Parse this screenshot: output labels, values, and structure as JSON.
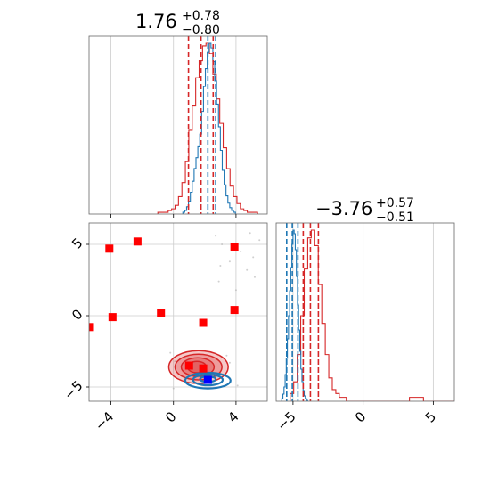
{
  "chart_data": {
    "type": "scatter",
    "subtype": "corner-plot",
    "colors": {
      "red": "#d62728",
      "blue": "#1f77b4",
      "marker_red": "#ff0000",
      "marker_blue": "#0000ff",
      "grid": "#cccccc"
    },
    "param1": {
      "title_main": "1.76",
      "title_sup": "+0.78",
      "title_sub": "−0.80",
      "xlim": [
        -5.4,
        6.0
      ],
      "xticks": [
        {
          "value": -4,
          "label": "−4"
        },
        {
          "value": 0,
          "label": "0"
        },
        {
          "value": 4,
          "label": "4"
        }
      ],
      "red_hist": {
        "bin_start": -1.0,
        "bin_width": 0.22,
        "counts": [
          1,
          1,
          1,
          2,
          3,
          5,
          10,
          18,
          30,
          48,
          62,
          78,
          88,
          96,
          98,
          92,
          80,
          66,
          52,
          38,
          26,
          16,
          10,
          6,
          3,
          2,
          1,
          1,
          1
        ]
      },
      "blue_hist": {
        "bin_start": 0.6,
        "bin_width": 0.12,
        "counts": [
          2,
          4,
          8,
          14,
          24,
          36,
          50,
          62,
          74,
          88,
          112,
          140,
          160,
          178,
          188,
          182,
          168,
          146,
          120,
          96,
          70,
          48,
          32,
          20,
          12,
          7,
          4,
          2
        ]
      },
      "red_quantiles": [
        0.96,
        1.76,
        2.54
      ],
      "blue_quantiles": [
        1.75,
        2.2,
        2.7
      ]
    },
    "param2": {
      "title_main": "−3.76",
      "title_sup": "+0.57",
      "title_sub": "−0.51",
      "xlim": [
        -6.2,
        6.5
      ],
      "xticks": [
        {
          "value": -5,
          "label": "−5"
        },
        {
          "value": 0,
          "label": "0"
        },
        {
          "value": 5,
          "label": "5"
        }
      ],
      "red_hist": {
        "bin_start": -5.2,
        "bin_width": 0.25,
        "counts": [
          2,
          5,
          12,
          22,
          34,
          42,
          44,
          40,
          30,
          20,
          12,
          6,
          3,
          2,
          1,
          1,
          0,
          0,
          0,
          0,
          0,
          0,
          0,
          0,
          0,
          0,
          0,
          0,
          0,
          0,
          0,
          0,
          0,
          0,
          1,
          1,
          1,
          1,
          0,
          0,
          0,
          0,
          0,
          0,
          0,
          0,
          0,
          0,
          0,
          0,
          0,
          0,
          0,
          0,
          0,
          0,
          0,
          0,
          0,
          0,
          1,
          1,
          1,
          1,
          0,
          0,
          0,
          0
        ]
      },
      "blue_hist": {
        "bin_start": -5.8,
        "bin_width": 0.08,
        "counts": [
          3,
          8,
          16,
          30,
          48,
          70,
          96,
          124,
          150,
          176,
          192,
          188,
          170,
          140,
          108,
          80,
          56,
          36,
          22,
          12,
          6,
          3,
          1
        ]
      },
      "red_quantiles": [
        -4.27,
        -3.76,
        -3.19
      ],
      "blue_quantiles": [
        -5.45,
        -5.05,
        -4.65
      ]
    },
    "joint": {
      "xlim": [
        -5.4,
        6.0
      ],
      "ylim": [
        -6.0,
        6.5
      ],
      "yticks": [
        {
          "value": -5,
          "label": "−5"
        },
        {
          "value": 0,
          "label": "0"
        },
        {
          "value": 5,
          "label": "5"
        }
      ],
      "red_contours": [
        {
          "cx": 1.6,
          "cy": -3.6,
          "rx": 1.9,
          "ry": 1.15
        },
        {
          "cx": 1.6,
          "cy": -3.6,
          "rx": 1.5,
          "ry": 0.9
        },
        {
          "cx": 1.55,
          "cy": -3.6,
          "rx": 1.05,
          "ry": 0.65
        },
        {
          "cx": 1.5,
          "cy": -3.6,
          "rx": 0.6,
          "ry": 0.4
        }
      ],
      "blue_contours": [
        {
          "cx": 2.2,
          "cy": -4.55,
          "rx": 1.45,
          "ry": 0.55
        },
        {
          "cx": 2.2,
          "cy": -4.5,
          "rx": 0.95,
          "ry": 0.38
        },
        {
          "cx": 2.2,
          "cy": -4.45,
          "rx": 0.5,
          "ry": 0.2
        }
      ],
      "red_markers": [
        {
          "x": -4.1,
          "y": 4.7
        },
        {
          "x": -2.3,
          "y": 5.2
        },
        {
          "x": 3.9,
          "y": 4.8
        },
        {
          "x": -3.9,
          "y": -0.1
        },
        {
          "x": -0.8,
          "y": 0.2
        },
        {
          "x": 3.9,
          "y": 0.4
        },
        {
          "x": 1.9,
          "y": -0.5
        },
        {
          "x": -5.4,
          "y": -0.8
        },
        {
          "x": 1.0,
          "y": -3.5
        },
        {
          "x": 1.9,
          "y": -3.7
        }
      ],
      "blue_markers": [
        {
          "x": 2.2,
          "y": -4.5
        }
      ],
      "scatter_points": [
        {
          "x": 2.7,
          "y": 5.6
        },
        {
          "x": 3.1,
          "y": 5.0
        },
        {
          "x": 4.3,
          "y": 4.5
        },
        {
          "x": 5.1,
          "y": 4.1
        },
        {
          "x": 3.6,
          "y": 3.8
        },
        {
          "x": 4.7,
          "y": 3.2
        },
        {
          "x": 5.5,
          "y": 5.3
        },
        {
          "x": 2.9,
          "y": 2.4
        },
        {
          "x": 4.0,
          "y": 1.8
        },
        {
          "x": -0.2,
          "y": -2.6
        },
        {
          "x": 0.1,
          "y": -3.2
        },
        {
          "x": 3.4,
          "y": -2.8
        },
        {
          "x": 4.1,
          "y": -4.9
        },
        {
          "x": 0.0,
          "y": -5.1
        },
        {
          "x": 3.6,
          "y": -3.3
        },
        {
          "x": 5.2,
          "y": 2.7
        },
        {
          "x": 4.9,
          "y": 5.8
        },
        {
          "x": 3.0,
          "y": 3.5
        }
      ]
    }
  }
}
